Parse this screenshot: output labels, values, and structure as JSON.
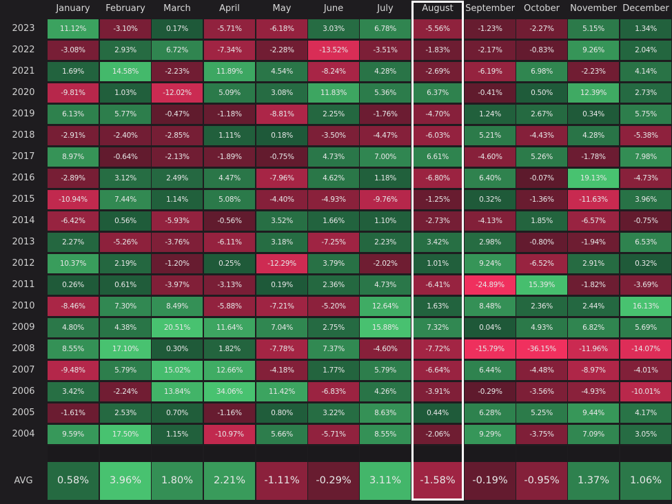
{
  "chart_data": {
    "type": "heatmap",
    "title": "",
    "xlabel": "",
    "ylabel": "",
    "months": [
      "January",
      "February",
      "March",
      "April",
      "May",
      "June",
      "July",
      "August",
      "September",
      "October",
      "November",
      "December"
    ],
    "years": [
      "2023",
      "2022",
      "2021",
      "2020",
      "2019",
      "2018",
      "2017",
      "2016",
      "2015",
      "2014",
      "2013",
      "2012",
      "2011",
      "2010",
      "2009",
      "2008",
      "2007",
      "2006",
      "2005",
      "2004"
    ],
    "values": [
      [
        "11.12%",
        "-3.10%",
        "0.17%",
        "-5.71%",
        "-6.18%",
        "3.03%",
        "6.78%",
        "-5.56%",
        "-1.23%",
        "-2.27%",
        "5.15%",
        "1.34%"
      ],
      [
        "-3.08%",
        "2.93%",
        "6.72%",
        "-7.34%",
        "-2.28%",
        "-13.52%",
        "-3.51%",
        "-1.83%",
        "-2.17%",
        "-0.83%",
        "9.26%",
        "2.04%"
      ],
      [
        "1.69%",
        "14.58%",
        "-2.23%",
        "11.89%",
        "4.54%",
        "-8.24%",
        "4.28%",
        "-2.69%",
        "-6.19%",
        "6.98%",
        "-2.23%",
        "4.14%"
      ],
      [
        "-9.81%",
        "1.03%",
        "-12.02%",
        "5.09%",
        "3.08%",
        "11.83%",
        "5.36%",
        "6.37%",
        "-0.41%",
        "0.50%",
        "12.39%",
        "2.73%"
      ],
      [
        "6.13%",
        "5.77%",
        "-0.47%",
        "-1.18%",
        "-8.81%",
        "2.25%",
        "-1.76%",
        "-4.70%",
        "1.24%",
        "2.67%",
        "0.34%",
        "5.75%"
      ],
      [
        "-2.91%",
        "-2.40%",
        "-2.85%",
        "1.11%",
        "0.18%",
        "-3.50%",
        "-4.47%",
        "-6.03%",
        "5.21%",
        "-4.43%",
        "4.28%",
        "-5.38%"
      ],
      [
        "8.97%",
        "-0.64%",
        "-2.13%",
        "-1.89%",
        "-0.75%",
        "4.73%",
        "7.00%",
        "6.61%",
        "-4.60%",
        "5.26%",
        "-1.78%",
        "7.98%"
      ],
      [
        "-2.89%",
        "3.12%",
        "2.49%",
        "4.47%",
        "-7.96%",
        "4.62%",
        "1.18%",
        "-6.80%",
        "6.40%",
        "-0.07%",
        "19.13%",
        "-4.73%"
      ],
      [
        "-10.94%",
        "7.44%",
        "1.14%",
        "5.08%",
        "-4.40%",
        "-4.93%",
        "-9.76%",
        "-1.25%",
        "0.32%",
        "-1.36%",
        "-11.63%",
        "3.96%"
      ],
      [
        "-6.42%",
        "0.56%",
        "-5.93%",
        "-0.56%",
        "3.52%",
        "1.66%",
        "1.10%",
        "-2.73%",
        "-4.13%",
        "1.85%",
        "-6.57%",
        "-0.75%"
      ],
      [
        "2.27%",
        "-5.26%",
        "-3.76%",
        "-6.11%",
        "3.18%",
        "-7.25%",
        "2.23%",
        "3.42%",
        "2.98%",
        "-0.80%",
        "-1.94%",
        "6.53%"
      ],
      [
        "10.37%",
        "2.19%",
        "-1.20%",
        "0.25%",
        "-12.29%",
        "3.79%",
        "-2.02%",
        "1.01%",
        "9.24%",
        "-6.52%",
        "2.91%",
        "0.32%"
      ],
      [
        "0.26%",
        "0.61%",
        "-3.97%",
        "-3.13%",
        "0.19%",
        "2.36%",
        "4.73%",
        "-6.41%",
        "-24.89%",
        "15.39%",
        "-1.82%",
        "-3.69%"
      ],
      [
        "-8.46%",
        "7.30%",
        "8.49%",
        "-5.88%",
        "-7.21%",
        "-5.20%",
        "12.64%",
        "1.63%",
        "8.48%",
        "2.36%",
        "2.44%",
        "16.13%"
      ],
      [
        "4.80%",
        "4.38%",
        "20.51%",
        "11.64%",
        "7.04%",
        "2.75%",
        "15.88%",
        "7.32%",
        "0.04%",
        "4.93%",
        "6.82%",
        "5.69%"
      ],
      [
        "8.55%",
        "17.10%",
        "0.30%",
        "1.82%",
        "-7.78%",
        "7.37%",
        "-4.60%",
        "-7.72%",
        "-15.79%",
        "-36.15%",
        "-11.96%",
        "-14.07%"
      ],
      [
        "-9.48%",
        "5.79%",
        "15.02%",
        "12.66%",
        "-4.18%",
        "1.77%",
        "5.79%",
        "-6.64%",
        "6.44%",
        "-4.48%",
        "-8.97%",
        "-4.01%"
      ],
      [
        "3.42%",
        "-2.24%",
        "13.84%",
        "34.06%",
        "11.42%",
        "-6.83%",
        "4.26%",
        "-3.91%",
        "-0.29%",
        "-3.56%",
        "-4.93%",
        "-10.01%"
      ],
      [
        "-1.61%",
        "2.53%",
        "0.70%",
        "-1.16%",
        "0.80%",
        "3.22%",
        "8.63%",
        "0.44%",
        "6.28%",
        "5.25%",
        "9.44%",
        "4.17%"
      ],
      [
        "9.59%",
        "17.50%",
        "1.15%",
        "-10.97%",
        "5.66%",
        "-5.71%",
        "8.55%",
        "-2.06%",
        "9.29%",
        "-3.75%",
        "7.09%",
        "3.05%"
      ]
    ],
    "avg_label": "AVG",
    "avg": [
      "0.58%",
      "3.96%",
      "1.80%",
      "2.21%",
      "-1.11%",
      "-0.29%",
      "3.11%",
      "-1.58%",
      "-0.19%",
      "-0.95%",
      "1.37%",
      "1.06%"
    ],
    "highlighted_column": "August",
    "legend": "none",
    "grid": true
  },
  "colors": {
    "background": "#1e1c1f",
    "positive_dark": "#1f5a3a",
    "positive_light": "#47c270",
    "negative_dark": "#5e1a2c",
    "negative_light": "#f2305f",
    "highlight_border": "#ffffff"
  }
}
